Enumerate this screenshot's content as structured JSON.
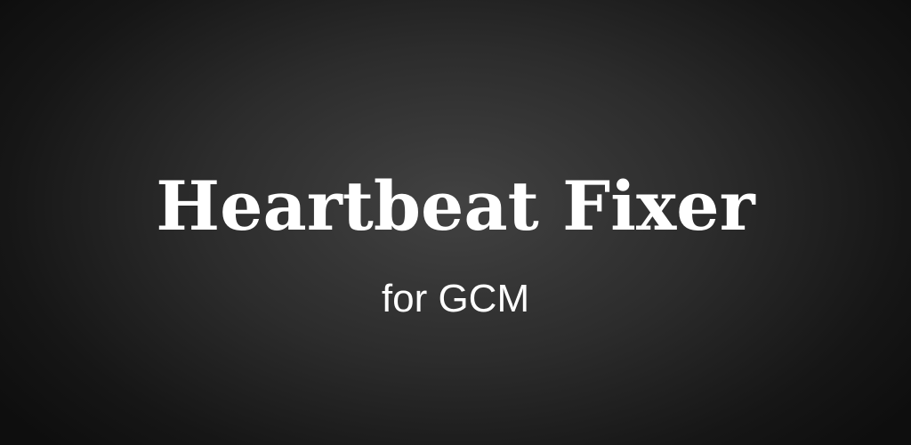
{
  "banner": {
    "title": "Heartbeat Fixer",
    "subtitle": "for GCM"
  },
  "colors": {
    "background_center": "#424242",
    "background_edge": "#0e0e0e",
    "text": "#ffffff"
  }
}
